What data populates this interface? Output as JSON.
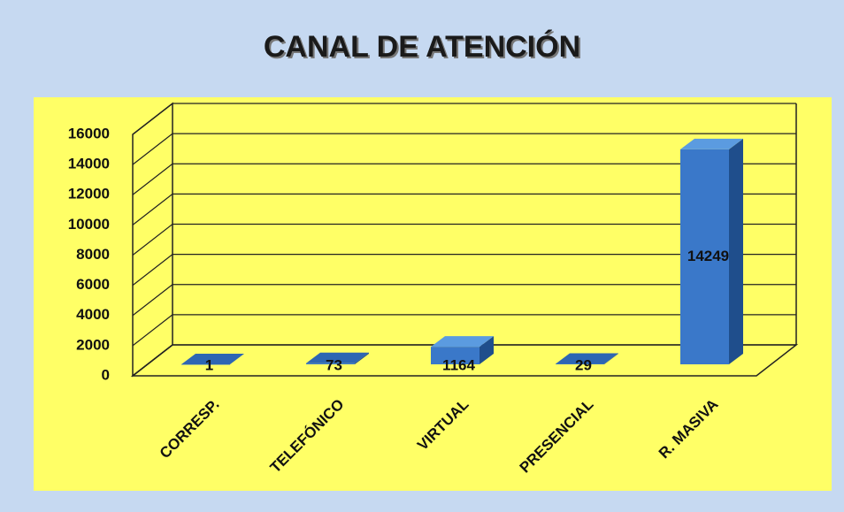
{
  "chart_data": {
    "type": "bar3d",
    "title": "CANAL DE ATENCIÓN",
    "categories": [
      "CORRESP.",
      "TELEFÓNICO",
      "VIRTUAL",
      "PRESENCIAL",
      "R. MASIVA"
    ],
    "values": [
      1,
      73,
      1164,
      29,
      14249
    ],
    "color": "#3a78c9",
    "ylim": [
      0,
      16000
    ],
    "yticks": [
      0,
      2000,
      4000,
      6000,
      8000,
      10000,
      12000,
      14000,
      16000
    ],
    "grid": true
  }
}
